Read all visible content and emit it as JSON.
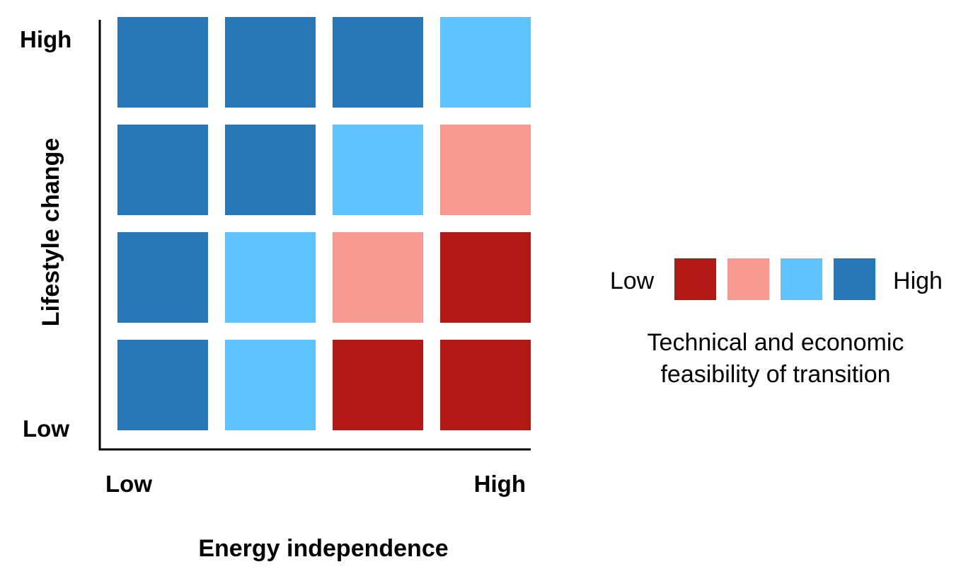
{
  "chart_data": {
    "type": "heatmap",
    "title": "",
    "xlabel": "Energy independence",
    "ylabel": "Lifestyle change",
    "x_tick_labels": {
      "low": "Low",
      "high": "High"
    },
    "y_tick_labels": {
      "low": "Low",
      "high": "High"
    },
    "levels": 4,
    "rows_top_to_bottom": [
      [
        4,
        4,
        4,
        3
      ],
      [
        4,
        4,
        3,
        2
      ],
      [
        4,
        3,
        2,
        1
      ],
      [
        4,
        3,
        1,
        1
      ]
    ],
    "grid": false,
    "legend": {
      "position": "right",
      "low_label": "Low",
      "high_label": "High",
      "caption_line1": "Technical and economic",
      "caption_line2": "feasibility of transition",
      "colors": [
        "#b11a12",
        "#f99a91",
        "#5ec4fd",
        "#2878b7"
      ]
    }
  }
}
